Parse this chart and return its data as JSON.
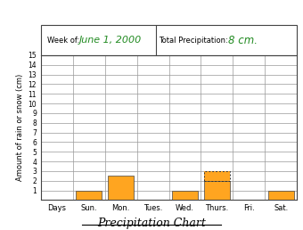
{
  "week_of": "June 1, 2000",
  "total_precip": "8 cm.",
  "days": [
    "Days",
    "Sun.",
    "Mon.",
    "Tues.",
    "Wed.",
    "Thurs.",
    "Fri.",
    "Sat."
  ],
  "values": [
    0,
    1,
    2.5,
    0,
    1,
    3,
    0,
    1
  ],
  "bar_color": "#FFA520",
  "dotted_bar_day_idx": 5,
  "dotted_bar_total": 3,
  "dotted_bar_solid": 2,
  "y_min": 0,
  "y_max": 15,
  "y_ticks": [
    1,
    2,
    3,
    4,
    5,
    6,
    7,
    8,
    9,
    10,
    11,
    12,
    13,
    14,
    15
  ],
  "ylabel": "Amount of rain or snow (cm)",
  "title": "Precipitation Chart",
  "header_week_label": "Week of:",
  "total_label": "Total Precipitation:",
  "bg_color": "#FFFFFF",
  "grid_color": "#999999",
  "border_color": "#444444"
}
